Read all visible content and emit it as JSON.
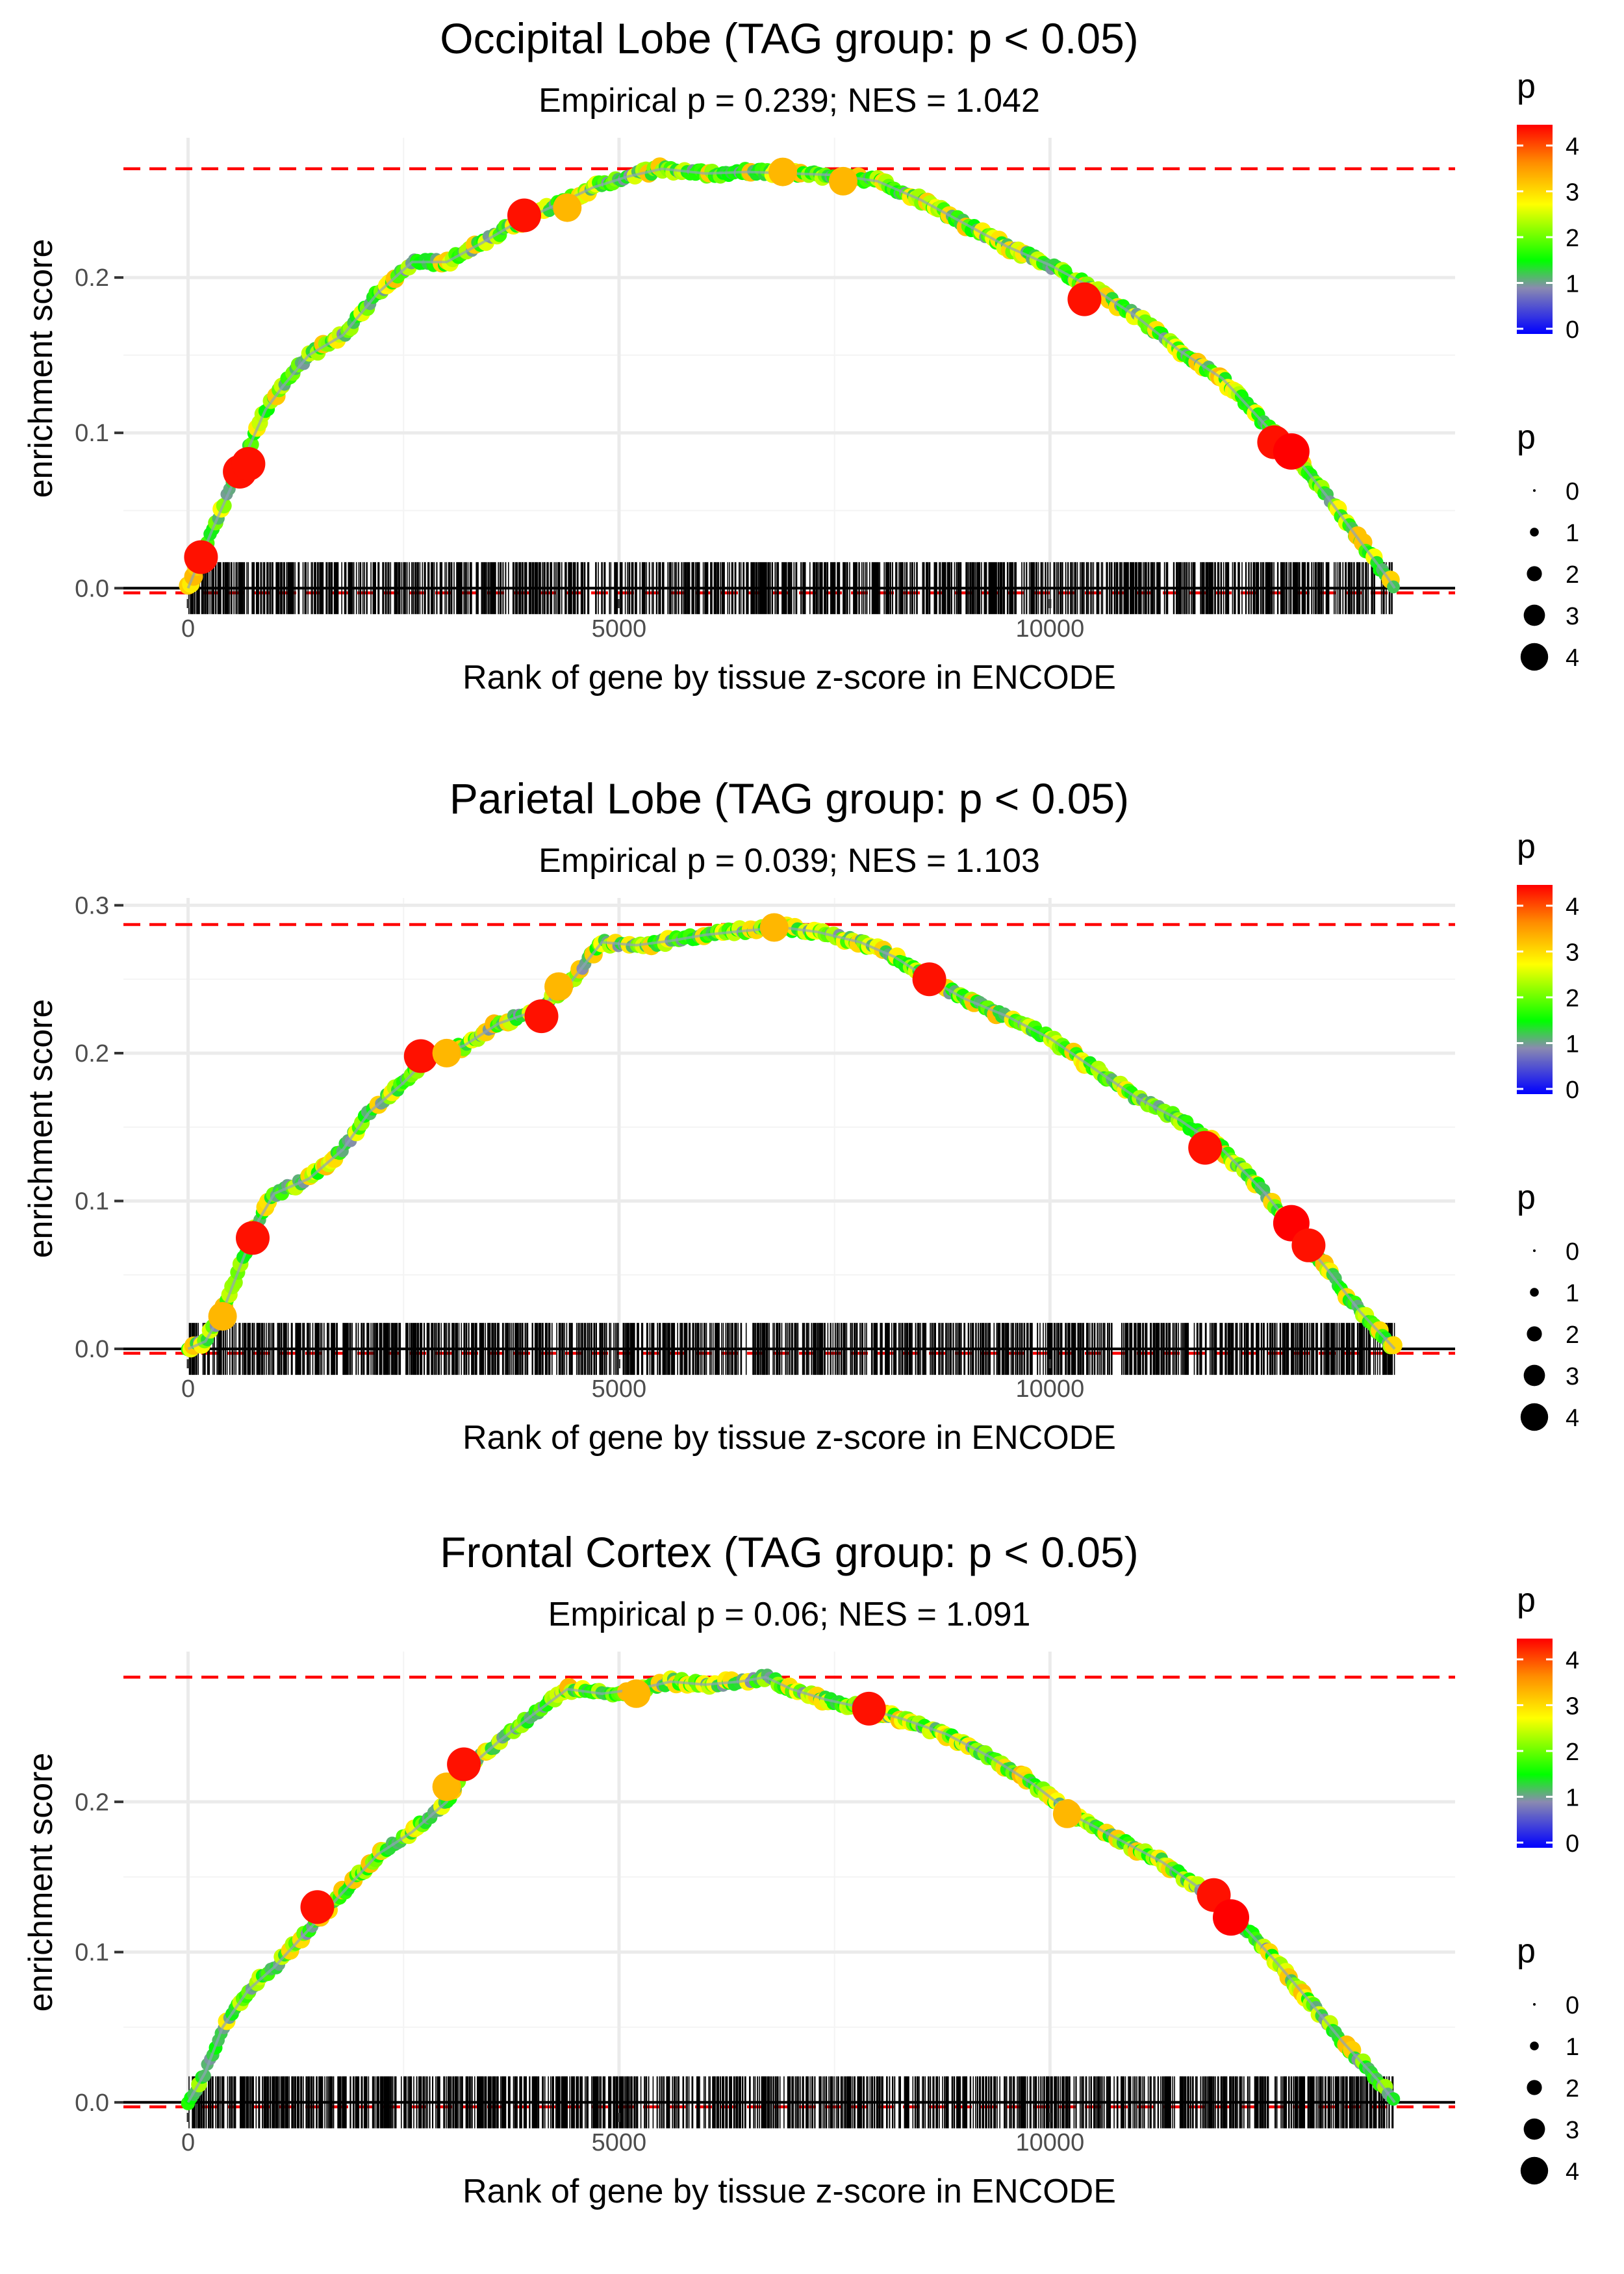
{
  "colors": {
    "grid": "#ebebeb",
    "refline": "#ff0000",
    "axis_text": "#4d4d4d",
    "gradient": [
      "#0000ff",
      "#8a8ab0",
      "#00ff00",
      "#ffff00",
      "#ff8c00",
      "#ff0000"
    ]
  },
  "chart_data": [
    {
      "type": "line",
      "title": "Occipital Lobe (TAG group: p < 0.05)",
      "subtitle": "Empirical p = 0.239; NES = 1.042",
      "xlabel": "Rank of gene by tissue z-score in ENCODE",
      "ylabel": "enrichment score",
      "xlim": [
        -750,
        14700
      ],
      "ylim": [
        -0.007,
        0.29
      ],
      "xticks": [
        0,
        5000,
        10000
      ],
      "yticks": [
        0.0,
        0.1,
        0.2
      ],
      "ytick_labels": [
        "0.0",
        "0.1",
        "0.2"
      ],
      "max_es": 0.27,
      "min_es": -0.003,
      "n_genes": 14000,
      "legend_title": "p",
      "colorbar_ticks": [
        0,
        1,
        2,
        3,
        4
      ],
      "size_legend": [
        0,
        1,
        2,
        3,
        4
      ],
      "curve": [
        [
          0,
          0
        ],
        [
          150,
          0.02
        ],
        [
          300,
          0.04
        ],
        [
          500,
          0.065
        ],
        [
          700,
          0.09
        ],
        [
          900,
          0.115
        ],
        [
          1100,
          0.13
        ],
        [
          1400,
          0.15
        ],
        [
          1800,
          0.163
        ],
        [
          2200,
          0.19
        ],
        [
          2600,
          0.21
        ],
        [
          3000,
          0.21
        ],
        [
          3400,
          0.222
        ],
        [
          3800,
          0.235
        ],
        [
          4200,
          0.245
        ],
        [
          4700,
          0.258
        ],
        [
          5100,
          0.265
        ],
        [
          5500,
          0.27
        ],
        [
          6000,
          0.267
        ],
        [
          6500,
          0.268
        ],
        [
          7000,
          0.267
        ],
        [
          7500,
          0.266
        ],
        [
          8000,
          0.262
        ],
        [
          8500,
          0.25
        ],
        [
          9000,
          0.235
        ],
        [
          9500,
          0.22
        ],
        [
          10000,
          0.208
        ],
        [
          10500,
          0.193
        ],
        [
          11000,
          0.175
        ],
        [
          11500,
          0.153
        ],
        [
          12000,
          0.135
        ],
        [
          12500,
          0.105
        ],
        [
          12800,
          0.088
        ],
        [
          13200,
          0.06
        ],
        [
          13600,
          0.03
        ],
        [
          13900,
          0.008
        ],
        [
          14000,
          0
        ]
      ],
      "highlights": [
        [
          150,
          0.02,
          4
        ],
        [
          600,
          0.075,
          4
        ],
        [
          700,
          0.08,
          4
        ],
        [
          3900,
          0.24,
          4
        ],
        [
          4400,
          0.245,
          3
        ],
        [
          6900,
          0.268,
          3
        ],
        [
          7600,
          0.262,
          3
        ],
        [
          10400,
          0.186,
          4
        ],
        [
          12600,
          0.094,
          4
        ],
        [
          12800,
          0.088,
          4.5
        ]
      ]
    },
    {
      "type": "line",
      "title": "Parietal Lobe (TAG group: p < 0.05)",
      "subtitle": "Empirical p = 0.039; NES = 1.103",
      "xlabel": "Rank of gene by tissue z-score in ENCODE",
      "ylabel": "enrichment score",
      "xlim": [
        -750,
        14700
      ],
      "ylim": [
        -0.007,
        0.305
      ],
      "xticks": [
        0,
        5000,
        10000
      ],
      "yticks": [
        0.0,
        0.1,
        0.2,
        0.3
      ],
      "ytick_labels": [
        "0.0",
        "0.1",
        "0.2",
        "0.3"
      ],
      "max_es": 0.287,
      "min_es": -0.003,
      "n_genes": 14000,
      "legend_title": "p",
      "colorbar_ticks": [
        0,
        1,
        2,
        3,
        4
      ],
      "size_legend": [
        0,
        1,
        2,
        3,
        4
      ],
      "curve": [
        [
          0,
          0
        ],
        [
          200,
          0.005
        ],
        [
          400,
          0.025
        ],
        [
          600,
          0.055
        ],
        [
          800,
          0.085
        ],
        [
          1000,
          0.105
        ],
        [
          1400,
          0.115
        ],
        [
          1800,
          0.135
        ],
        [
          2100,
          0.16
        ],
        [
          2500,
          0.18
        ],
        [
          2800,
          0.198
        ],
        [
          3200,
          0.205
        ],
        [
          3600,
          0.22
        ],
        [
          4000,
          0.228
        ],
        [
          4400,
          0.245
        ],
        [
          4800,
          0.275
        ],
        [
          5200,
          0.273
        ],
        [
          5600,
          0.276
        ],
        [
          6000,
          0.28
        ],
        [
          6500,
          0.283
        ],
        [
          6900,
          0.285
        ],
        [
          7300,
          0.282
        ],
        [
          7800,
          0.275
        ],
        [
          8200,
          0.265
        ],
        [
          8600,
          0.25
        ],
        [
          9000,
          0.237
        ],
        [
          9500,
          0.225
        ],
        [
          10000,
          0.21
        ],
        [
          10500,
          0.19
        ],
        [
          11000,
          0.17
        ],
        [
          11500,
          0.155
        ],
        [
          12000,
          0.135
        ],
        [
          12500,
          0.105
        ],
        [
          12800,
          0.083
        ],
        [
          13200,
          0.055
        ],
        [
          13600,
          0.025
        ],
        [
          14000,
          0
        ]
      ],
      "highlights": [
        [
          400,
          0.022,
          3
        ],
        [
          750,
          0.075,
          4
        ],
        [
          2700,
          0.198,
          4
        ],
        [
          3000,
          0.2,
          3
        ],
        [
          4100,
          0.225,
          4
        ],
        [
          4300,
          0.245,
          3
        ],
        [
          6800,
          0.285,
          3
        ],
        [
          8600,
          0.25,
          4
        ],
        [
          11800,
          0.136,
          4
        ],
        [
          12800,
          0.085,
          4.5
        ],
        [
          13000,
          0.07,
          4
        ]
      ]
    },
    {
      "type": "line",
      "title": "Frontal Cortex (TAG group: p < 0.05)",
      "subtitle": "Empirical p = 0.06; NES = 1.091",
      "xlabel": "Rank of gene by tissue z-score in ENCODE",
      "ylabel": "enrichment score",
      "xlim": [
        -750,
        14700
      ],
      "ylim": [
        -0.007,
        0.3
      ],
      "xticks": [
        0,
        5000,
        10000
      ],
      "yticks": [
        0.0,
        0.1,
        0.2
      ],
      "ytick_labels": [
        "0.0",
        "0.1",
        "0.2"
      ],
      "max_es": 0.283,
      "min_es": -0.003,
      "n_genes": 14000,
      "legend_title": "p",
      "colorbar_ticks": [
        0,
        1,
        2,
        3,
        4
      ],
      "size_legend": [
        0,
        1,
        2,
        3,
        4
      ],
      "curve": [
        [
          0,
          0
        ],
        [
          200,
          0.02
        ],
        [
          400,
          0.05
        ],
        [
          700,
          0.075
        ],
        [
          1000,
          0.09
        ],
        [
          1400,
          0.115
        ],
        [
          1800,
          0.14
        ],
        [
          2200,
          0.165
        ],
        [
          2600,
          0.18
        ],
        [
          3000,
          0.2
        ],
        [
          3200,
          0.22
        ],
        [
          3600,
          0.24
        ],
        [
          4000,
          0.258
        ],
        [
          4400,
          0.275
        ],
        [
          4800,
          0.272
        ],
        [
          5200,
          0.275
        ],
        [
          5600,
          0.28
        ],
        [
          6000,
          0.278
        ],
        [
          6400,
          0.28
        ],
        [
          6700,
          0.283
        ],
        [
          7000,
          0.275
        ],
        [
          7400,
          0.268
        ],
        [
          7800,
          0.263
        ],
        [
          8300,
          0.255
        ],
        [
          8800,
          0.245
        ],
        [
          9300,
          0.23
        ],
        [
          9800,
          0.212
        ],
        [
          10300,
          0.19
        ],
        [
          10800,
          0.175
        ],
        [
          11300,
          0.16
        ],
        [
          11800,
          0.14
        ],
        [
          12200,
          0.12
        ],
        [
          12600,
          0.095
        ],
        [
          13000,
          0.068
        ],
        [
          13400,
          0.04
        ],
        [
          13800,
          0.015
        ],
        [
          14000,
          0
        ]
      ],
      "highlights": [
        [
          1500,
          0.13,
          4
        ],
        [
          3000,
          0.21,
          3
        ],
        [
          3200,
          0.225,
          4
        ],
        [
          5200,
          0.272,
          3
        ],
        [
          7900,
          0.262,
          4
        ],
        [
          10200,
          0.192,
          3
        ],
        [
          11900,
          0.138,
          4
        ],
        [
          12100,
          0.123,
          4.5
        ]
      ]
    }
  ]
}
